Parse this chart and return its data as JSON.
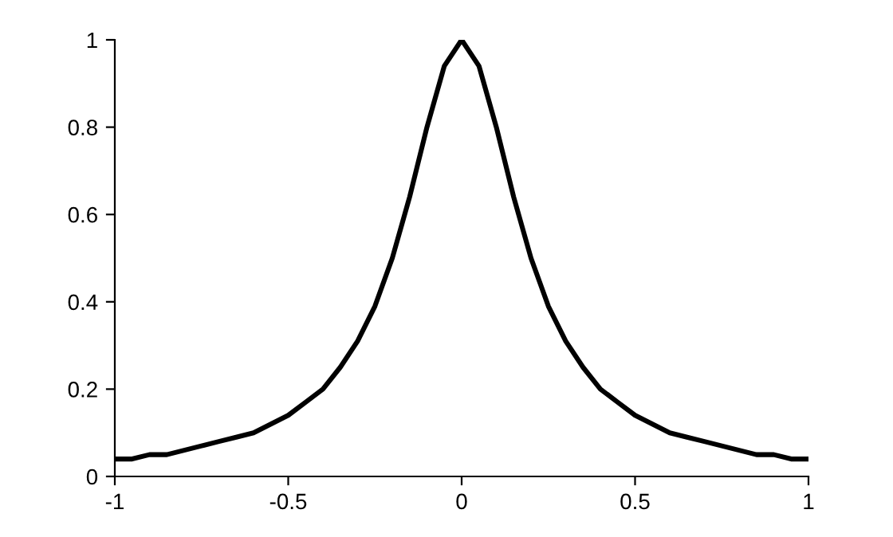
{
  "chart_data": {
    "type": "line",
    "x": [
      -1,
      -0.95,
      -0.9,
      -0.85,
      -0.8,
      -0.75,
      -0.7,
      -0.65,
      -0.6,
      -0.55,
      -0.5,
      -0.45,
      -0.4,
      -0.35,
      -0.3,
      -0.25,
      -0.2,
      -0.15,
      -0.1,
      -0.05,
      0,
      0.05,
      0.1,
      0.15,
      0.2,
      0.25,
      0.3,
      0.35,
      0.4,
      0.45,
      0.5,
      0.55,
      0.6,
      0.65,
      0.7,
      0.75,
      0.8,
      0.85,
      0.9,
      0.95,
      1
    ],
    "series": [
      {
        "color": "#000000",
        "values": [
          0.04,
          0.04,
          0.05,
          0.05,
          0.06,
          0.07,
          0.08,
          0.09,
          0.1,
          0.12,
          0.14,
          0.17,
          0.2,
          0.25,
          0.31,
          0.39,
          0.5,
          0.64,
          0.8,
          0.94,
          1,
          0.94,
          0.8,
          0.64,
          0.5,
          0.39,
          0.31,
          0.25,
          0.2,
          0.17,
          0.14,
          0.12,
          0.1,
          0.09,
          0.08,
          0.07,
          0.06,
          0.05,
          0.05,
          0.04,
          0.04
        ]
      }
    ],
    "xlim": [
      -1,
      1
    ],
    "xticks": [
      {
        "value": -1,
        "label": "-1"
      },
      {
        "value": -0.5,
        "label": "-0.5"
      },
      0,
      0.5,
      1
    ],
    "ylim": [
      0,
      1
    ],
    "yticks": [
      0,
      0.2,
      0.4,
      0.6,
      0.8,
      1
    ],
    "grid": false,
    "legend": false,
    "marker": "none",
    "line_style": "solid"
  }
}
